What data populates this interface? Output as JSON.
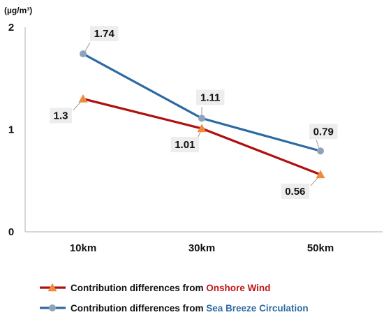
{
  "chart_data": {
    "type": "line",
    "categories": [
      "10km",
      "30km",
      "50km"
    ],
    "ylim": [
      0,
      2
    ],
    "yticks": [
      "0",
      "1",
      "2"
    ],
    "unit": "(µg/m³)",
    "grid": false,
    "legend_position": "bottom-left",
    "series": [
      {
        "name": "Contribution differences from Onshore Wind",
        "legend_prefix": "Contribution differences from ",
        "legend_highlight": "Onshore Wind",
        "values": [
          1.3,
          1.01,
          0.56
        ],
        "labels": [
          "1.3",
          "1.01",
          "0.56"
        ],
        "line_color": "#b00f0f",
        "marker": "triangle",
        "marker_color": "#f08a3c",
        "highlight_color": "#c0141b"
      },
      {
        "name": "Contribution differences from Sea Breeze Circulation",
        "legend_prefix": "Contribution differences from ",
        "legend_highlight": "Sea Breeze Circulation",
        "values": [
          1.74,
          1.11,
          0.79
        ],
        "labels": [
          "1.74",
          "1.11",
          "0.79"
        ],
        "line_color": "#2e6aa2",
        "marker": "circle",
        "marker_color": "#8fa2bd",
        "highlight_color": "#2e6aa2"
      }
    ]
  }
}
